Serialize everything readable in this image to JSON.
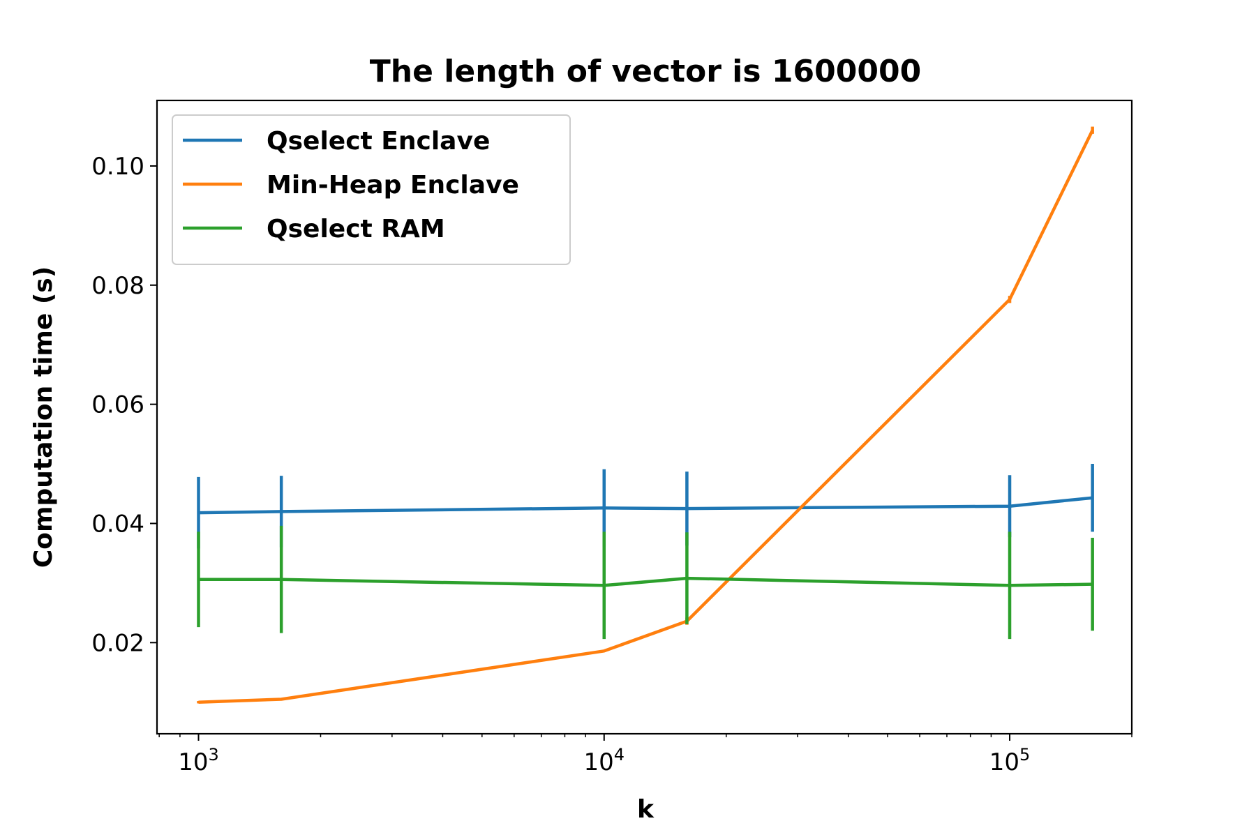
{
  "chart_data": {
    "type": "line",
    "title": "The length of vector is 1600000",
    "xlabel": "k",
    "ylabel": "Computation time (s)",
    "x_scale": "log",
    "xlim": [
      790,
      200000
    ],
    "ylim": [
      0.0047,
      0.111
    ],
    "grid": false,
    "legend_position": "top-left",
    "x_ticks": [
      {
        "value": 1000,
        "base": "10",
        "exp": "3"
      },
      {
        "value": 10000,
        "base": "10",
        "exp": "4"
      },
      {
        "value": 100000,
        "base": "10",
        "exp": "5"
      }
    ],
    "y_ticks": [
      {
        "value": 0.02,
        "label": "0.02"
      },
      {
        "value": 0.04,
        "label": "0.04"
      },
      {
        "value": 0.06,
        "label": "0.06"
      },
      {
        "value": 0.08,
        "label": "0.08"
      },
      {
        "value": 0.1,
        "label": "0.10"
      }
    ],
    "x": [
      1000,
      1600,
      10000,
      16000,
      100000,
      160000
    ],
    "series": [
      {
        "name": "Qselect Enclave",
        "color": "#1f77b4",
        "values": [
          0.0418,
          0.042,
          0.0426,
          0.0425,
          0.0429,
          0.0443
        ],
        "error": [
          0.006,
          0.006,
          0.0065,
          0.0062,
          0.0052,
          0.0057
        ]
      },
      {
        "name": "Min-Heap Enclave",
        "color": "#ff7f0e",
        "values": [
          0.01,
          0.0105,
          0.0186,
          0.0236,
          0.0776,
          0.106
        ],
        "error": [
          0.0002,
          0.0002,
          0.0002,
          0.0006,
          0.0006,
          0.0006
        ]
      },
      {
        "name": "Qselect RAM",
        "color": "#2ca02c",
        "values": [
          0.0306,
          0.0306,
          0.0296,
          0.0308,
          0.0296,
          0.0298
        ],
        "error": [
          0.008,
          0.009,
          0.009,
          0.0077,
          0.009,
          0.0078
        ]
      }
    ]
  }
}
